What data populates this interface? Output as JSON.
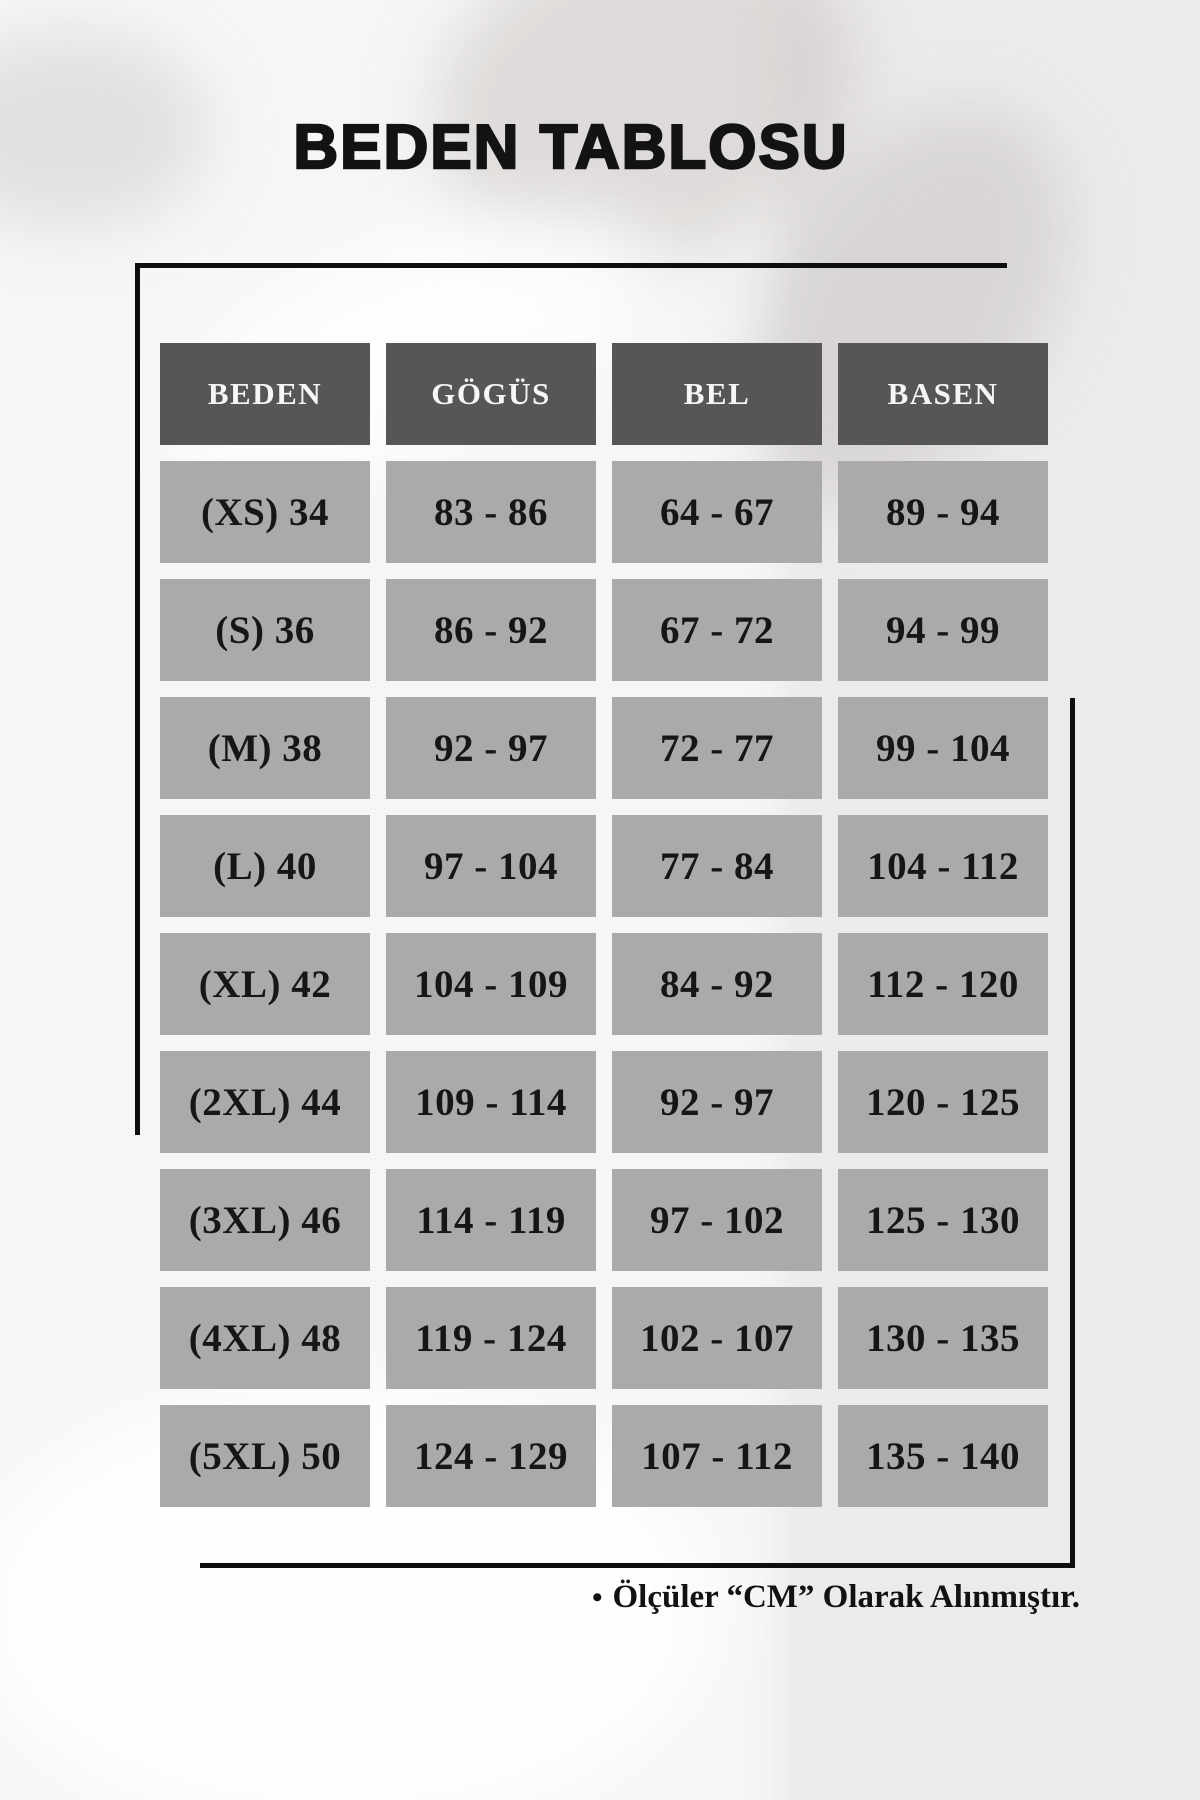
{
  "title": "BEDEN TABLOSU",
  "table": {
    "headers": [
      "BEDEN",
      "GÖGÜS",
      "BEL",
      "BASEN"
    ],
    "rows": [
      [
        "(XS) 34",
        "83 - 86",
        "64 - 67",
        "89 - 94"
      ],
      [
        "(S) 36",
        "86 - 92",
        "67 - 72",
        "94 - 99"
      ],
      [
        "(M) 38",
        "92 - 97",
        "72 - 77",
        "99 - 104"
      ],
      [
        "(L) 40",
        "97 - 104",
        "77 - 84",
        "104 - 112"
      ],
      [
        "(XL) 42",
        "104 - 109",
        "84 - 92",
        "112 - 120"
      ],
      [
        "(2XL) 44",
        "109 - 114",
        "92 - 97",
        "120 - 125"
      ],
      [
        "(3XL) 46",
        "114 - 119",
        "97 - 102",
        "125 - 130"
      ],
      [
        "(4XL) 48",
        "119 - 124",
        "102 - 107",
        "130 - 135"
      ],
      [
        "(5XL) 50",
        "124 - 129",
        "107 - 112",
        "135 - 140"
      ]
    ]
  },
  "footer": {
    "bullet": "•",
    "note": "Ölçüler “CM” Olarak Alınmıştır."
  },
  "colors": {
    "header_bg": "#575557",
    "cell_bg": "#acaaa9",
    "header_text": "#f7f6f4",
    "cell_text": "#161616",
    "frame_line": "#0e0e0e",
    "title_text": "#131313",
    "page_bg": "#f7f6f5"
  }
}
